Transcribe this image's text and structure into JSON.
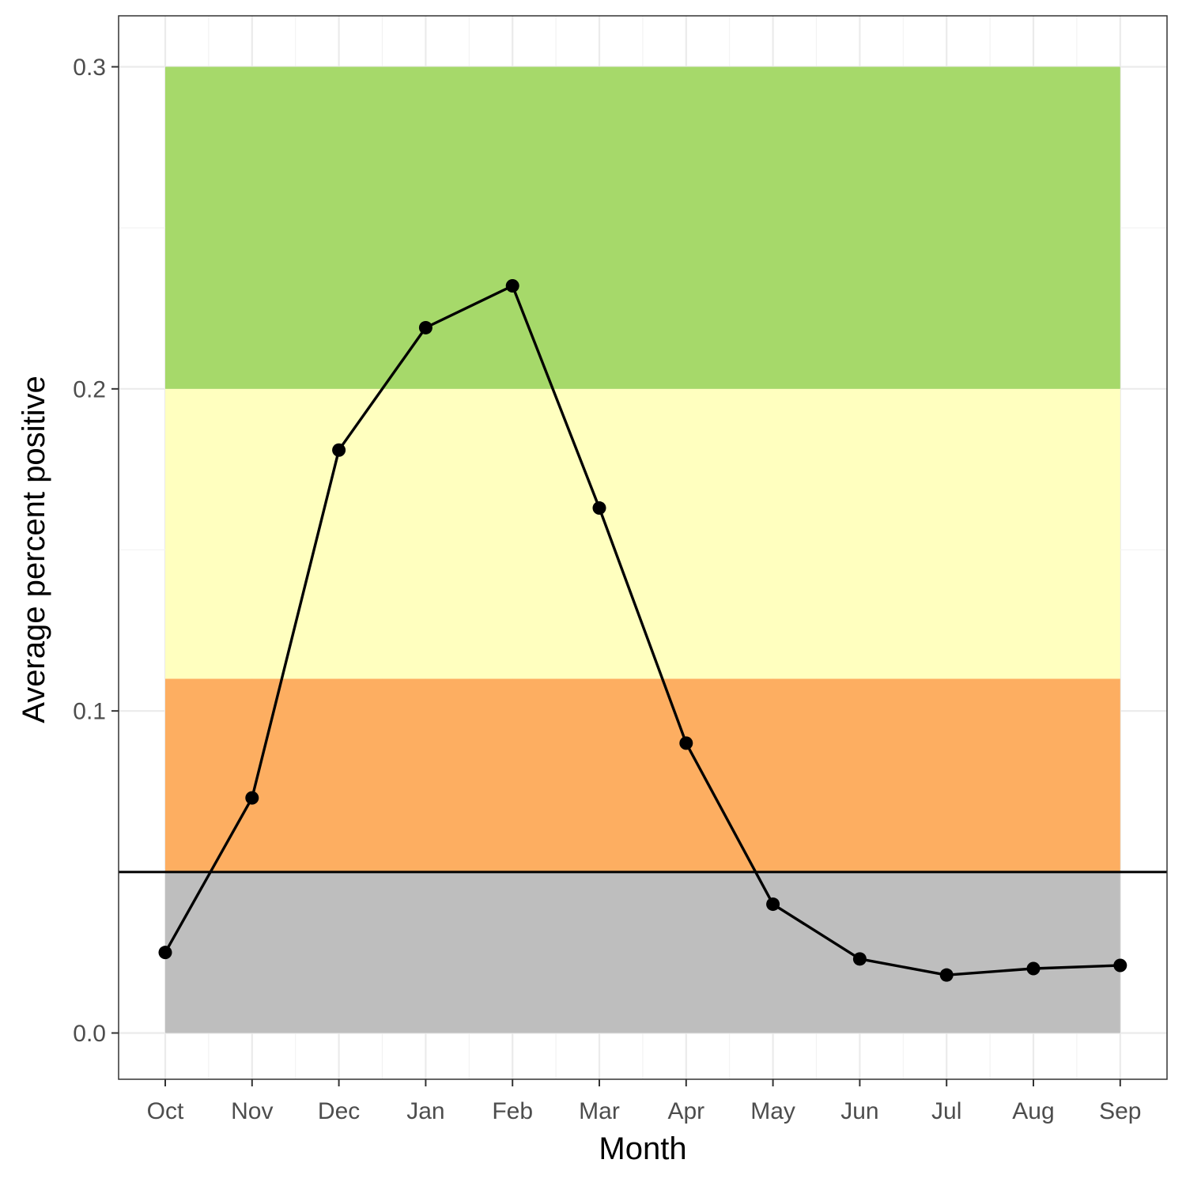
{
  "chart_data": {
    "type": "line",
    "xlabel": "Month",
    "ylabel": "Average percent positive",
    "categories": [
      "Oct",
      "Nov",
      "Dec",
      "Jan",
      "Feb",
      "Mar",
      "Apr",
      "May",
      "Jun",
      "Jul",
      "Aug",
      "Sep"
    ],
    "series": [
      {
        "values": [
          0.025,
          0.073,
          0.181,
          0.219,
          0.232,
          0.163,
          0.09,
          0.04,
          0.023,
          0.018,
          0.02,
          0.021
        ],
        "color": "#000000"
      }
    ],
    "ylim": [
      -0.015,
      0.315
    ],
    "yticks": [
      0.0,
      0.1,
      0.2,
      0.3
    ],
    "ytick_labels": [
      "0.0",
      "0.1",
      "0.2",
      "0.3"
    ],
    "bands": [
      {
        "ymin": 0.0,
        "ymax": 0.05,
        "color": "#bebebe"
      },
      {
        "ymin": 0.05,
        "ymax": 0.11,
        "color": "#fdae61"
      },
      {
        "ymin": 0.11,
        "ymax": 0.2,
        "color": "#ffffbf"
      },
      {
        "ymin": 0.2,
        "ymax": 0.3,
        "color": "#a6d96a"
      }
    ],
    "hline": {
      "y": 0.05,
      "color": "#000000"
    },
    "grid": true
  }
}
